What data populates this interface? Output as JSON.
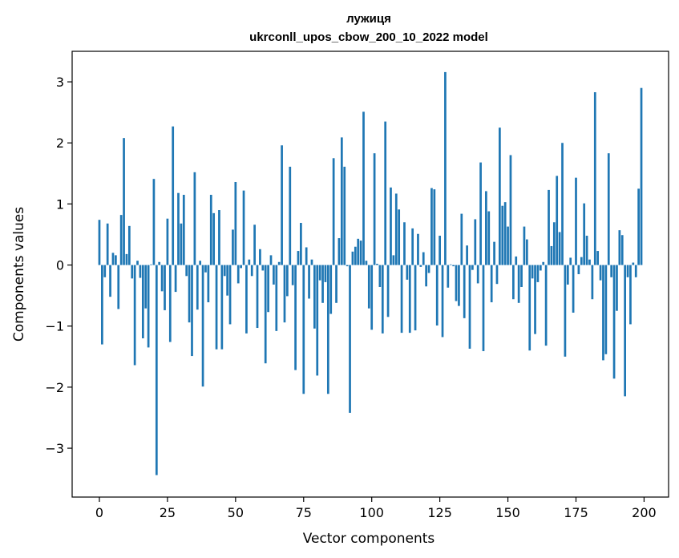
{
  "chart_data": {
    "type": "bar",
    "title": "лужиця",
    "subtitle": "ukrconll_upos_cbow_200_10_2022 model",
    "xlabel": "Vector components",
    "ylabel": "Components values",
    "xlim": [
      -10,
      209
    ],
    "ylim": [
      -3.8,
      3.5
    ],
    "xticks": [
      0,
      25,
      50,
      75,
      100,
      125,
      150,
      175,
      200
    ],
    "yticks": [
      -3,
      -2,
      -1,
      0,
      1,
      2,
      3
    ],
    "bar_color": "#1f77b4",
    "grid": false,
    "legend": "none",
    "x": [
      0,
      1,
      2,
      3,
      4,
      5,
      6,
      7,
      8,
      9,
      10,
      11,
      12,
      13,
      14,
      15,
      16,
      17,
      18,
      19,
      20,
      21,
      22,
      23,
      24,
      25,
      26,
      27,
      28,
      29,
      30,
      31,
      32,
      33,
      34,
      35,
      36,
      37,
      38,
      39,
      40,
      41,
      42,
      43,
      44,
      45,
      46,
      47,
      48,
      49,
      50,
      51,
      52,
      53,
      54,
      55,
      56,
      57,
      58,
      59,
      60,
      61,
      62,
      63,
      64,
      65,
      66,
      67,
      68,
      69,
      70,
      71,
      72,
      73,
      74,
      75,
      76,
      77,
      78,
      79,
      80,
      81,
      82,
      83,
      84,
      85,
      86,
      87,
      88,
      89,
      90,
      91,
      92,
      93,
      94,
      95,
      96,
      97,
      98,
      99,
      100,
      101,
      102,
      103,
      104,
      105,
      106,
      107,
      108,
      109,
      110,
      111,
      112,
      113,
      114,
      115,
      116,
      117,
      118,
      119,
      120,
      121,
      122,
      123,
      124,
      125,
      126,
      127,
      128,
      129,
      130,
      131,
      132,
      133,
      134,
      135,
      136,
      137,
      138,
      139,
      140,
      141,
      142,
      143,
      144,
      145,
      146,
      147,
      148,
      149,
      150,
      151,
      152,
      153,
      154,
      155,
      156,
      157,
      158,
      159,
      160,
      161,
      162,
      163,
      164,
      165,
      166,
      167,
      168,
      169,
      170,
      171,
      172,
      173,
      174,
      175,
      176,
      177,
      178,
      179,
      180,
      181,
      182,
      183,
      184,
      185,
      186,
      187,
      188,
      189,
      190,
      191,
      192,
      193,
      194,
      195,
      196,
      197,
      198,
      199
    ],
    "values": [
      0.74,
      -1.3,
      -0.2,
      0.68,
      -0.52,
      0.2,
      0.16,
      -0.72,
      0.82,
      2.08,
      0.18,
      0.64,
      -0.22,
      -1.64,
      0.07,
      -0.21,
      -1.2,
      -0.71,
      -1.35,
      0.01,
      1.41,
      -3.44,
      0.05,
      -0.43,
      -0.74,
      0.76,
      -1.26,
      2.27,
      -0.44,
      1.18,
      0.68,
      1.15,
      -0.18,
      -0.94,
      -1.49,
      1.52,
      -0.73,
      0.07,
      -1.99,
      -0.12,
      -0.61,
      1.15,
      0.85,
      -1.38,
      0.9,
      -1.38,
      -0.18,
      -0.5,
      -0.97,
      0.58,
      1.36,
      -0.3,
      -0.05,
      1.22,
      -1.12,
      0.09,
      -0.18,
      0.66,
      -1.03,
      0.26,
      -0.09,
      -1.61,
      -0.77,
      0.16,
      -0.32,
      -1.08,
      0.05,
      1.96,
      -0.94,
      -0.51,
      1.61,
      -0.33,
      -1.72,
      0.23,
      0.69,
      -2.11,
      0.29,
      -0.55,
      0.09,
      -1.04,
      -1.81,
      -0.25,
      -0.62,
      -0.28,
      -2.11,
      -0.8,
      1.75,
      -0.62,
      0.44,
      2.09,
      1.61,
      -0.02,
      -2.42,
      0.22,
      0.3,
      0.43,
      0.4,
      2.51,
      0.07,
      -0.71,
      -1.06,
      1.83,
      0.02,
      -0.36,
      -1.12,
      2.35,
      -0.85,
      1.27,
      0.16,
      1.17,
      0.91,
      -1.11,
      0.7,
      -0.24,
      -1.11,
      0.6,
      -1.07,
      0.51,
      -0.03,
      0.21,
      -0.35,
      -0.13,
      1.26,
      1.24,
      -0.99,
      0.48,
      -1.18,
      3.16,
      -0.37,
      0.01,
      -0.02,
      -0.59,
      -0.67,
      0.84,
      -0.87,
      0.32,
      -1.37,
      -0.08,
      0.75,
      -0.3,
      1.68,
      -1.41,
      1.21,
      0.88,
      -0.61,
      0.38,
      -0.31,
      2.25,
      0.97,
      1.03,
      0.63,
      1.8,
      -0.56,
      0.14,
      -0.62,
      -0.36,
      0.63,
      0.42,
      -1.4,
      -0.22,
      -1.13,
      -0.28,
      -0.09,
      0.05,
      -1.32,
      1.23,
      0.31,
      0.7,
      1.46,
      0.54,
      2.0,
      -1.5,
      -0.32,
      0.12,
      -0.78,
      1.43,
      -0.15,
      0.13,
      1.01,
      0.48,
      0.09,
      -0.56,
      2.83,
      0.23,
      -0.25,
      -1.56,
      -1.46,
      1.83,
      -0.2,
      -1.86,
      -0.75,
      0.57,
      0.49,
      -2.15,
      -0.2,
      -0.97,
      0.04,
      -0.2,
      1.25,
      2.9
    ]
  }
}
